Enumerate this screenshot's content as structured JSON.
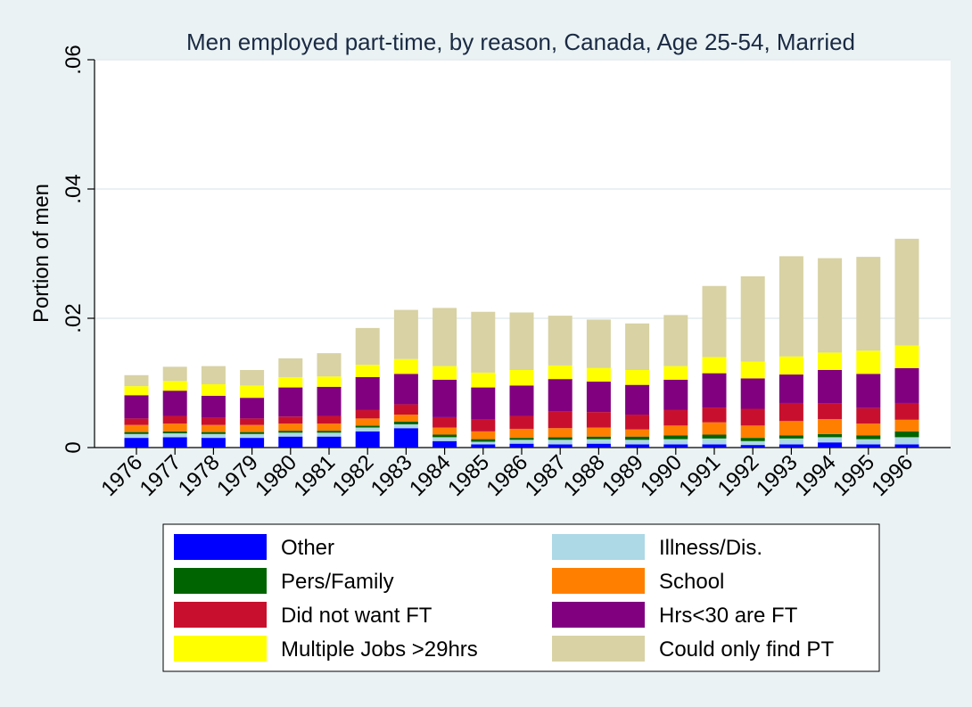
{
  "chart_data": {
    "type": "bar",
    "stacked": true,
    "title": "Men employed part-time, by reason, Canada, Age 25-54, Married",
    "xlabel": "",
    "ylabel": "Portion of men",
    "ylim": [
      0,
      0.06
    ],
    "yticks": [
      0,
      0.02,
      0.04,
      0.06
    ],
    "ytick_labels": [
      "0",
      ".02",
      ".04",
      ".06"
    ],
    "grid": true,
    "legend_position": "bottom",
    "categories": [
      "1976",
      "1977",
      "1978",
      "1979",
      "1980",
      "1981",
      "1982",
      "1983",
      "1984",
      "1985",
      "1986",
      "1987",
      "1988",
      "1989",
      "1990",
      "1991",
      "1992",
      "1993",
      "1994",
      "1995",
      "1996"
    ],
    "series": [
      {
        "name": "Other",
        "color": "#0000ff",
        "values": [
          0.0015,
          0.0016,
          0.0015,
          0.0015,
          0.0017,
          0.0017,
          0.0025,
          0.003,
          0.001,
          0.0005,
          0.0006,
          0.0005,
          0.0006,
          0.0005,
          0.0005,
          0.0005,
          0.0004,
          0.0005,
          0.0008,
          0.0005,
          0.0005
        ]
      },
      {
        "name": "Illness/Dis.",
        "color": "#add8e6",
        "values": [
          0.0006,
          0.0006,
          0.0006,
          0.0006,
          0.0006,
          0.0006,
          0.0006,
          0.0006,
          0.0006,
          0.0004,
          0.0006,
          0.0007,
          0.0007,
          0.0007,
          0.0008,
          0.0009,
          0.0006,
          0.0009,
          0.0008,
          0.0008,
          0.0011
        ]
      },
      {
        "name": "Pers/Family",
        "color": "#006400",
        "values": [
          0.0003,
          0.0003,
          0.0003,
          0.0003,
          0.0003,
          0.0003,
          0.0003,
          0.0004,
          0.0004,
          0.0004,
          0.0003,
          0.0004,
          0.0004,
          0.0005,
          0.0006,
          0.0006,
          0.0005,
          0.0005,
          0.0005,
          0.0006,
          0.0009
        ]
      },
      {
        "name": "School",
        "color": "#ff8000",
        "values": [
          0.0011,
          0.0012,
          0.0011,
          0.0011,
          0.0011,
          0.0011,
          0.0011,
          0.0011,
          0.0011,
          0.0012,
          0.0014,
          0.0014,
          0.0014,
          0.0011,
          0.0015,
          0.0019,
          0.0019,
          0.0022,
          0.0023,
          0.0018,
          0.0018
        ]
      },
      {
        "name": "Did not want FT",
        "color": "#c8102e",
        "values": [
          0.001,
          0.0012,
          0.0011,
          0.001,
          0.0011,
          0.0012,
          0.0013,
          0.0016,
          0.0016,
          0.0018,
          0.002,
          0.0026,
          0.0024,
          0.0023,
          0.0024,
          0.0023,
          0.0026,
          0.0028,
          0.0024,
          0.0024,
          0.0026
        ]
      },
      {
        "name": "Hrs<30 are FT",
        "color": "#800080",
        "values": [
          0.0036,
          0.0039,
          0.0034,
          0.0032,
          0.0045,
          0.0045,
          0.0051,
          0.0047,
          0.0058,
          0.005,
          0.0047,
          0.005,
          0.0047,
          0.0046,
          0.0047,
          0.0053,
          0.0047,
          0.0044,
          0.0052,
          0.0053,
          0.0054
        ]
      },
      {
        "name": "Multiple Jobs >29hrs",
        "color": "#ffff00",
        "values": [
          0.0014,
          0.0015,
          0.0018,
          0.0019,
          0.0016,
          0.0016,
          0.0019,
          0.0023,
          0.0021,
          0.0023,
          0.0024,
          0.0021,
          0.0021,
          0.0023,
          0.0021,
          0.0025,
          0.0026,
          0.0028,
          0.0027,
          0.0036,
          0.0035
        ]
      },
      {
        "name": "Could only find PT",
        "color": "#d8d2a4",
        "values": [
          0.0017,
          0.0022,
          0.0028,
          0.0024,
          0.0029,
          0.0036,
          0.0057,
          0.0076,
          0.009,
          0.0094,
          0.0089,
          0.0077,
          0.0075,
          0.0072,
          0.0079,
          0.011,
          0.0132,
          0.0155,
          0.0146,
          0.0145,
          0.0165
        ]
      }
    ],
    "legend_order": [
      "Other",
      "Illness/Dis.",
      "Pers/Family",
      "School",
      "Did not want FT",
      "Hrs<30 are FT",
      "Multiple Jobs >29hrs",
      "Could only find PT"
    ]
  }
}
